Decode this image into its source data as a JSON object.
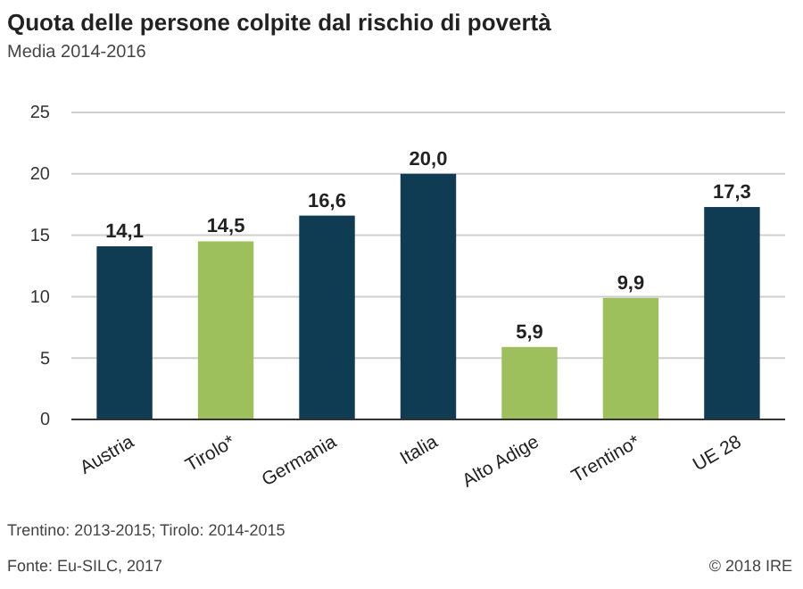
{
  "chart_data": {
    "type": "bar",
    "title": "Quota delle persone colpite dal rischio di povertà",
    "subtitle": "Media 2014-2016",
    "categories": [
      "Austria",
      "Tirolo*",
      "Germania",
      "Italia",
      "Alto Adige",
      "Trentino*",
      "UE 28"
    ],
    "values": [
      14.1,
      14.5,
      16.6,
      20.0,
      5.9,
      9.9,
      17.3
    ],
    "colors": [
      "#0f3b53",
      "#9dbf5c",
      "#0f3b53",
      "#0f3b53",
      "#9dbf5c",
      "#9dbf5c",
      "#0f3b53"
    ],
    "value_labels": [
      "14,1",
      "14,5",
      "16,6",
      "20,0",
      "5,9",
      "9,9",
      "17,3"
    ],
    "ylim": [
      0,
      25
    ],
    "yticks": [
      0,
      5,
      10,
      15,
      20,
      25
    ],
    "grid": "y",
    "annotations": [
      "Trentino: 2013-2015; Tirolo: 2014-2015",
      "Fonte: Eu-SILC, 2017",
      "© 2018 IRE"
    ]
  }
}
